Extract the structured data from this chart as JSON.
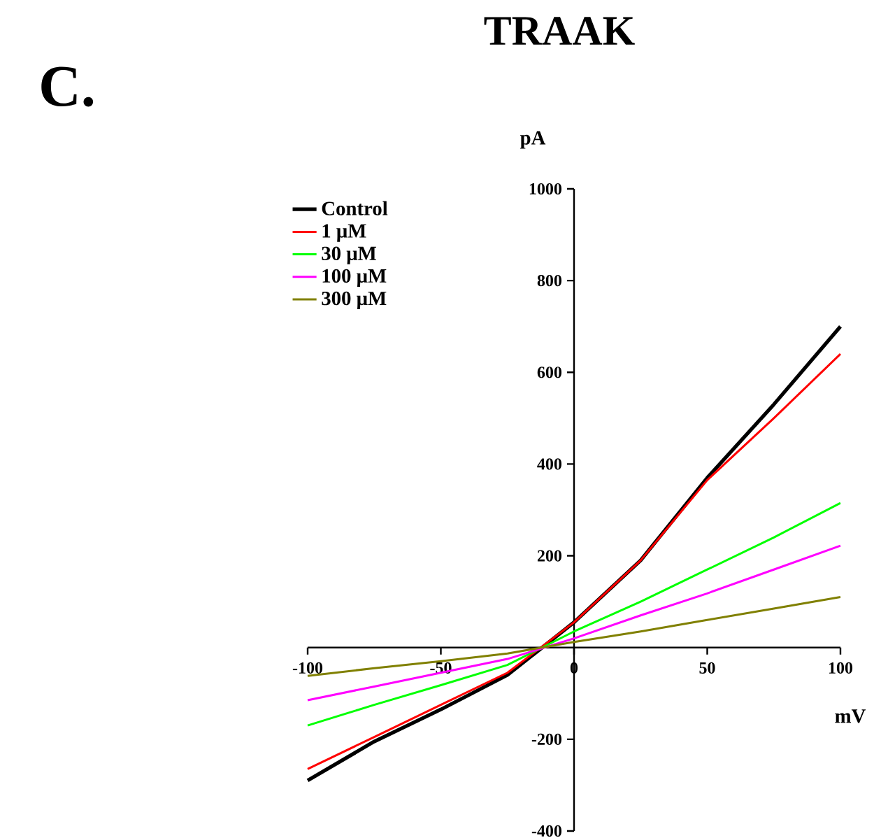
{
  "chart_data": {
    "type": "line",
    "title": "TRAAK",
    "annotations": [
      "C."
    ],
    "xlabel": "mV",
    "ylabel": "pA",
    "x": [
      -100,
      -75,
      -50,
      -25,
      0,
      25,
      50,
      75,
      100
    ],
    "series": [
      {
        "name": "Control",
        "color": "#000000",
        "values": [
          -290,
          -205,
          -135,
          -60,
          55,
          190,
          370,
          530,
          700
        ]
      },
      {
        "name": "1 μM",
        "color": "#ff0000",
        "values": [
          -265,
          -195,
          -125,
          -55,
          55,
          190,
          365,
          500,
          640
        ]
      },
      {
        "name": "30 μM",
        "color": "#00ff00",
        "values": [
          -170,
          -125,
          -82,
          -38,
          35,
          100,
          170,
          240,
          315
        ]
      },
      {
        "name": "100 μM",
        "color": "#ff00ff",
        "values": [
          -115,
          -85,
          -55,
          -25,
          20,
          70,
          118,
          170,
          222
        ]
      },
      {
        "name": "300 μM",
        "color": "#808000",
        "values": [
          -62,
          -45,
          -30,
          -13,
          12,
          35,
          60,
          85,
          110
        ]
      }
    ],
    "xlim": [
      -100,
      100
    ],
    "xticks": [
      -100,
      -50,
      0,
      50,
      100
    ],
    "ylim": [
      -400,
      1000
    ],
    "yticks": [
      -400,
      -200,
      200,
      400,
      600,
      800,
      1000
    ],
    "legend": "top left",
    "marker": "none",
    "line_style": "solid",
    "grid": false
  }
}
